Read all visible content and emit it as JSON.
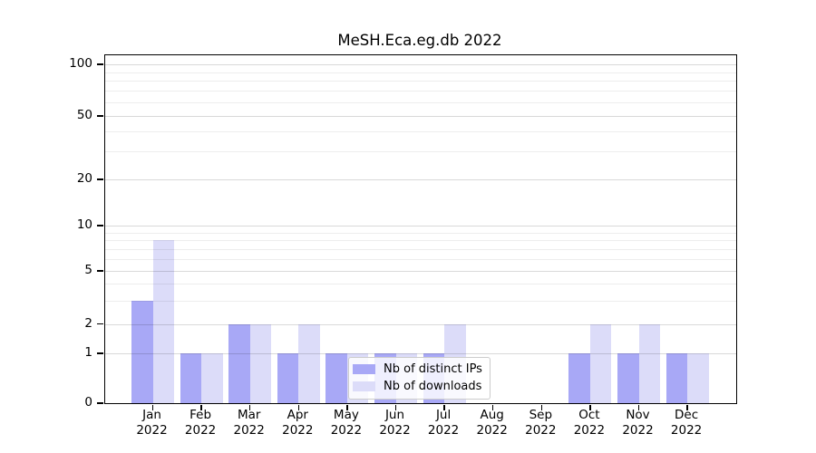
{
  "figure": {
    "title": "MeSH.Eca.eg.db 2022"
  },
  "chart_data": {
    "type": "bar",
    "title": "MeSH.Eca.eg.db 2022",
    "categories": [
      "Jan 2022",
      "Feb 2022",
      "Mar 2022",
      "Apr 2022",
      "May 2022",
      "Jun 2022",
      "Jul 2022",
      "Aug 2022",
      "Sep 2022",
      "Oct 2022",
      "Nov 2022",
      "Dec 2022"
    ],
    "series": [
      {
        "name": "Nb of distinct IPs",
        "color": "#a8a8f6",
        "values": [
          3,
          1,
          2,
          1,
          1,
          1,
          1,
          0,
          0,
          1,
          1,
          1
        ]
      },
      {
        "name": "Nb of downloads",
        "color": "#dcdcf9",
        "values": [
          8,
          1,
          2,
          2,
          1,
          1,
          2,
          0,
          0,
          2,
          2,
          1
        ]
      }
    ],
    "xlabel": "",
    "ylabel": "",
    "yscale": "log 1-2-5 ticks with linear 0-1 segment",
    "ylim": [
      0,
      110
    ],
    "y_ticks": [
      100,
      50,
      20,
      10,
      5,
      2,
      1,
      0
    ],
    "y_minor_gridlines": [
      3,
      4,
      6,
      7,
      8,
      9,
      30,
      40,
      60,
      70,
      80,
      90
    ],
    "grid": true,
    "legend": {
      "position": "inside-bottom-center",
      "entries": [
        "Nb of distinct IPs",
        "Nb of downloads"
      ]
    }
  }
}
